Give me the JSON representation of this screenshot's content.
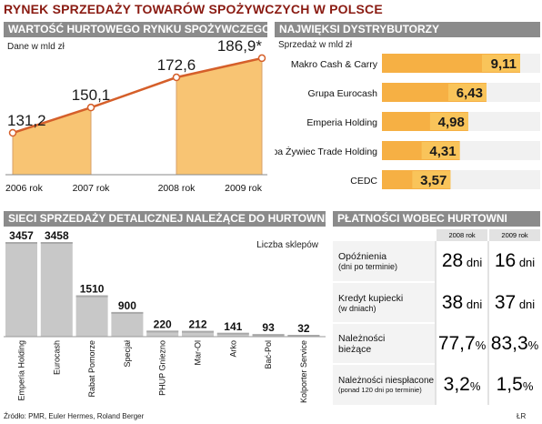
{
  "title": "RYNEK SPRZEDAŻY TOWARÓW SPOŻYWCZYCH W POLSCE",
  "source": "Źródło: PMR, Euler Hermes, Roland Berger",
  "credit": "ŁR",
  "colors": {
    "orange": "#f6b044",
    "orange_dark": "#e0782a",
    "line": "#d55f2a",
    "gray_bar": "#c8c8c8",
    "panel_head": "#8b8b8b",
    "title": "#8a1b12"
  },
  "chart_data": [
    {
      "type": "area",
      "title": "WARTOŚĆ HURTOWEGO RYNKU SPOŻYWCZEGO",
      "unit": "Dane w mld zł",
      "categories": [
        "2006 rok",
        "2007 rok",
        "2008 rok",
        "2009 rok"
      ],
      "values": [
        131.2,
        150.1,
        172.6,
        186.9
      ],
      "value_labels": [
        "131,2",
        "150,1",
        "172,6",
        "186,9*"
      ],
      "shaded_segments": [
        "2006 rok-2007 rok",
        "2008 rok-2009 rok"
      ],
      "ylim": [
        100,
        195
      ],
      "grid": false
    },
    {
      "type": "bar",
      "orientation": "horizontal",
      "title": "NAJWIĘKSI DYSTRYBUTORZY",
      "unit": "Sprzedaż w mld zł",
      "categories": [
        "Makro Cash & Carry",
        "Grupa Eurocash",
        "Emperia Holding",
        "Grupa Żywiec Trade Holding",
        "CEDC"
      ],
      "values": [
        9.11,
        6.43,
        4.98,
        4.31,
        3.57
      ],
      "value_labels": [
        "9,11",
        "6,43",
        "4,98",
        "4,31",
        "3,57"
      ],
      "xlim": [
        0,
        9.11
      ]
    },
    {
      "type": "bar",
      "title": "SIECI SPRZEDAŻY DETALICZNEJ NALEŻĄCE DO HURTOWNI",
      "unit": "Liczba sklepów",
      "categories": [
        "Emperia Holding",
        "Eurocash",
        "Rabat Pomorze",
        "Specjał",
        "PHUP Gniezno",
        "Mar-Ol",
        "Arko",
        "Bać-Pol",
        "Kolporter Service"
      ],
      "values": [
        3457,
        3458,
        1510,
        900,
        220,
        212,
        141,
        93,
        32
      ],
      "ylim": [
        0,
        3458
      ]
    },
    {
      "type": "table",
      "title": "PŁATNOŚCI WOBEC HURTOWNI",
      "columns": [
        "2008 rok",
        "2009 rok"
      ],
      "rows": [
        {
          "label_line1": "Opóźnienia",
          "label_line2": "(dni po terminie)",
          "values": [
            28,
            16
          ],
          "value_strings": [
            "28",
            "16"
          ],
          "unit": "dni"
        },
        {
          "label_line1": "Kredyt kupiecki",
          "label_line2": "(w dniach)",
          "values": [
            38,
            37
          ],
          "value_strings": [
            "38",
            "37"
          ],
          "unit": "dni"
        },
        {
          "label_line1": "Należności",
          "label_line2": "bieżące",
          "values": [
            77.7,
            83.3
          ],
          "value_strings": [
            "77,7",
            "83,3"
          ],
          "unit": "%"
        },
        {
          "label_line1": "Należności niespłacone",
          "label_line2": "(ponad 120 dni po terminie)",
          "values": [
            3.2,
            1.5
          ],
          "value_strings": [
            "3,2",
            "1,5"
          ],
          "unit": "%"
        }
      ]
    }
  ]
}
